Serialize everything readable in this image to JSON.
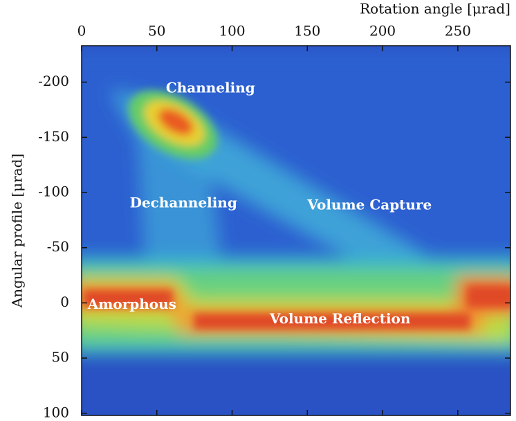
{
  "chart_data": {
    "type": "heatmap",
    "x_label": "Rotation angle [μrad]",
    "y_label": "Angular profile [μrad]",
    "xlim": [
      0,
      285
    ],
    "xticks": [
      0,
      50,
      100,
      150,
      200,
      250
    ],
    "ylim": [
      -233,
      102
    ],
    "yticks": [
      -200,
      -150,
      -100,
      -50,
      0,
      50,
      100
    ],
    "y_inverted": true,
    "annotations": [
      {
        "text": "Channeling",
        "x": 56,
        "y": -194
      },
      {
        "text": "Dechanneling",
        "x": 32,
        "y": -90
      },
      {
        "text": "Volume Capture",
        "x": 150,
        "y": -88
      },
      {
        "text": "Amorphous",
        "x": 4,
        "y": 2
      },
      {
        "text": "Volume Reflection",
        "x": 125,
        "y": 15
      }
    ]
  }
}
